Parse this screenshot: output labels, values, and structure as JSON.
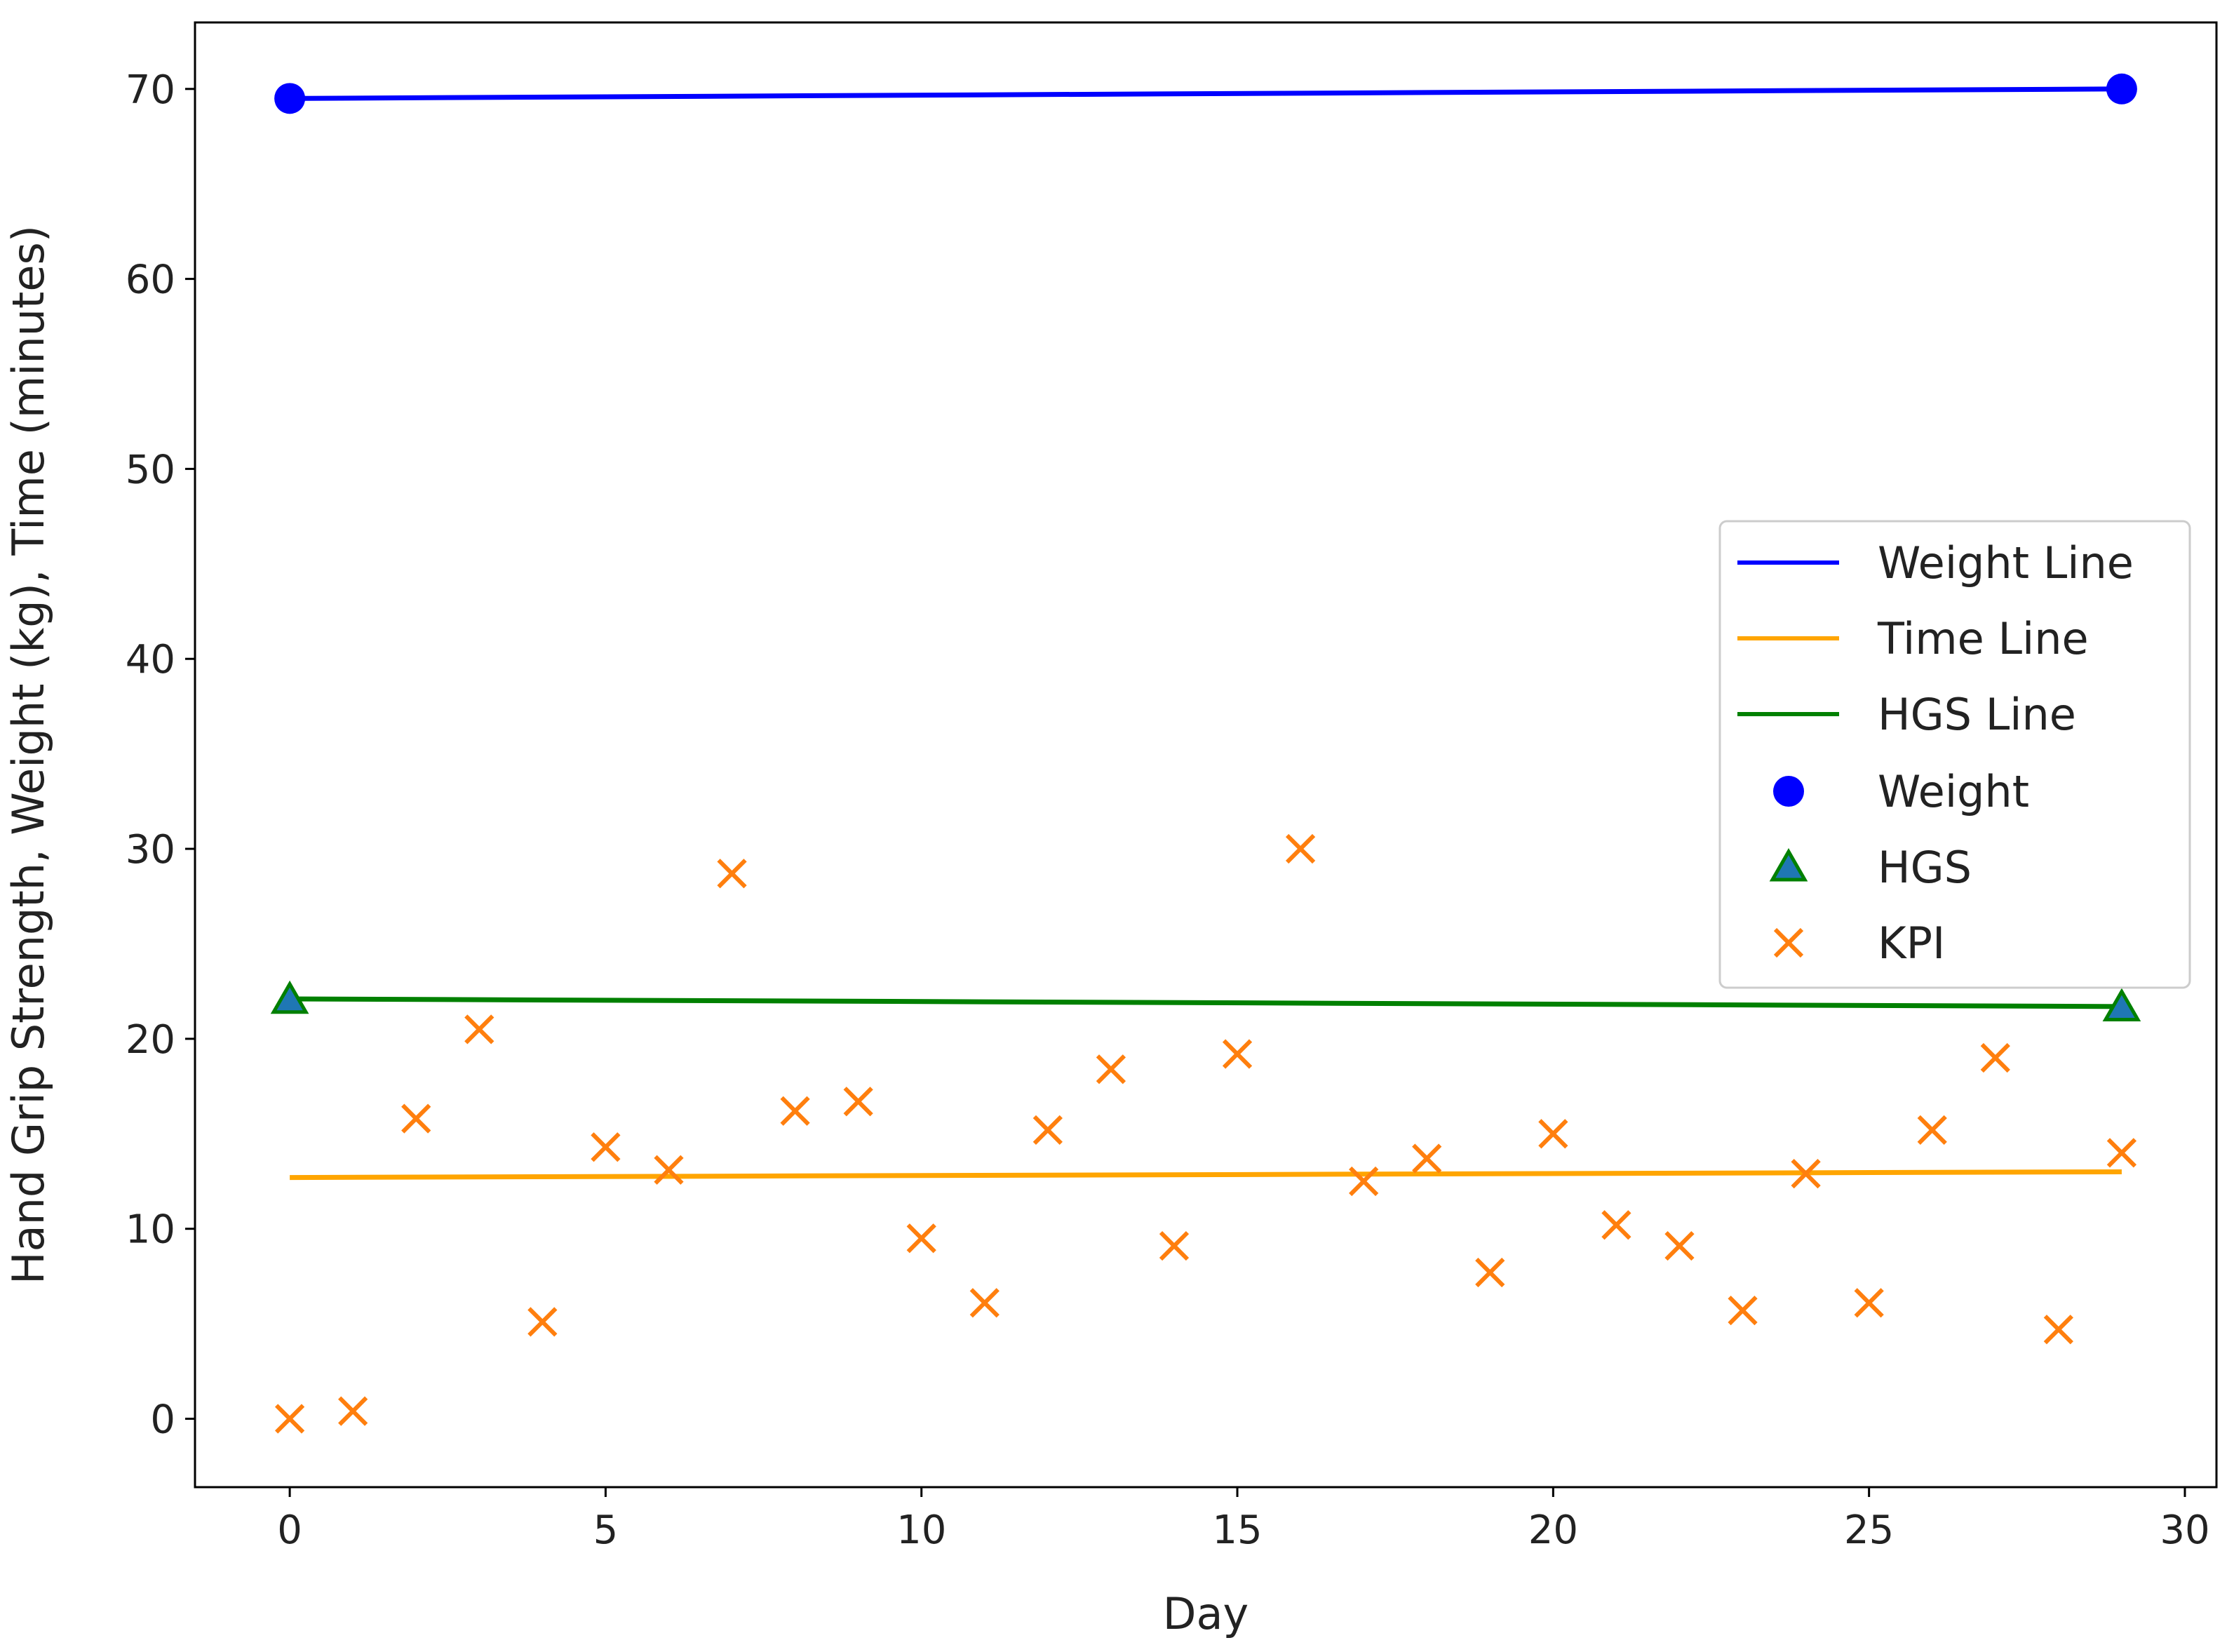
{
  "chart_data": {
    "type": "scatter",
    "title": "",
    "xlabel": "Day",
    "ylabel": "Hand Grip Strength, Weight (kg), Time (minutes)",
    "xlim": [
      -1.5,
      30.5
    ],
    "ylim": [
      -3.6,
      73.5
    ],
    "x_ticks": [
      0,
      5,
      10,
      15,
      20,
      25,
      30
    ],
    "y_ticks": [
      0,
      10,
      20,
      30,
      40,
      50,
      60,
      70
    ],
    "grid": false,
    "legend_position": "center-right",
    "series": [
      {
        "name": "Weight Line",
        "kind": "line",
        "color": "#0000ff",
        "x": [
          0,
          29
        ],
        "y": [
          69.5,
          70.0
        ]
      },
      {
        "name": "Time Line",
        "kind": "line",
        "color": "#ffa500",
        "x": [
          0,
          29
        ],
        "y": [
          12.7,
          13.0
        ]
      },
      {
        "name": "HGS Line",
        "kind": "line",
        "color": "#008000",
        "x": [
          0,
          29
        ],
        "y": [
          22.1,
          21.7
        ]
      },
      {
        "name": "Weight",
        "kind": "scatter",
        "marker": "circle",
        "color": "#0000ff",
        "x": [
          0,
          29
        ],
        "y": [
          69.5,
          70.0
        ]
      },
      {
        "name": "HGS",
        "kind": "scatter",
        "marker": "triangle",
        "color": "#1f77b4",
        "edge_color": "#008000",
        "x": [
          0,
          29
        ],
        "y": [
          22.0,
          21.6
        ]
      },
      {
        "name": "KPI",
        "kind": "scatter",
        "marker": "x",
        "color": "#ff7f0e",
        "x": [
          0,
          1,
          2,
          3,
          4,
          5,
          6,
          7,
          8,
          9,
          10,
          11,
          12,
          13,
          14,
          15,
          16,
          17,
          18,
          19,
          20,
          21,
          22,
          23,
          24,
          25,
          26,
          27,
          28,
          29
        ],
        "y": [
          0,
          0.4,
          15.8,
          20.5,
          5.1,
          14.3,
          13.1,
          28.7,
          16.2,
          16.7,
          9.5,
          6.1,
          15.2,
          18.4,
          9.1,
          19.2,
          30.0,
          12.5,
          13.7,
          7.7,
          15.0,
          10.2,
          9.1,
          5.7,
          12.9,
          6.1,
          15.2,
          19.0,
          4.7,
          14.0
        ]
      }
    ]
  }
}
